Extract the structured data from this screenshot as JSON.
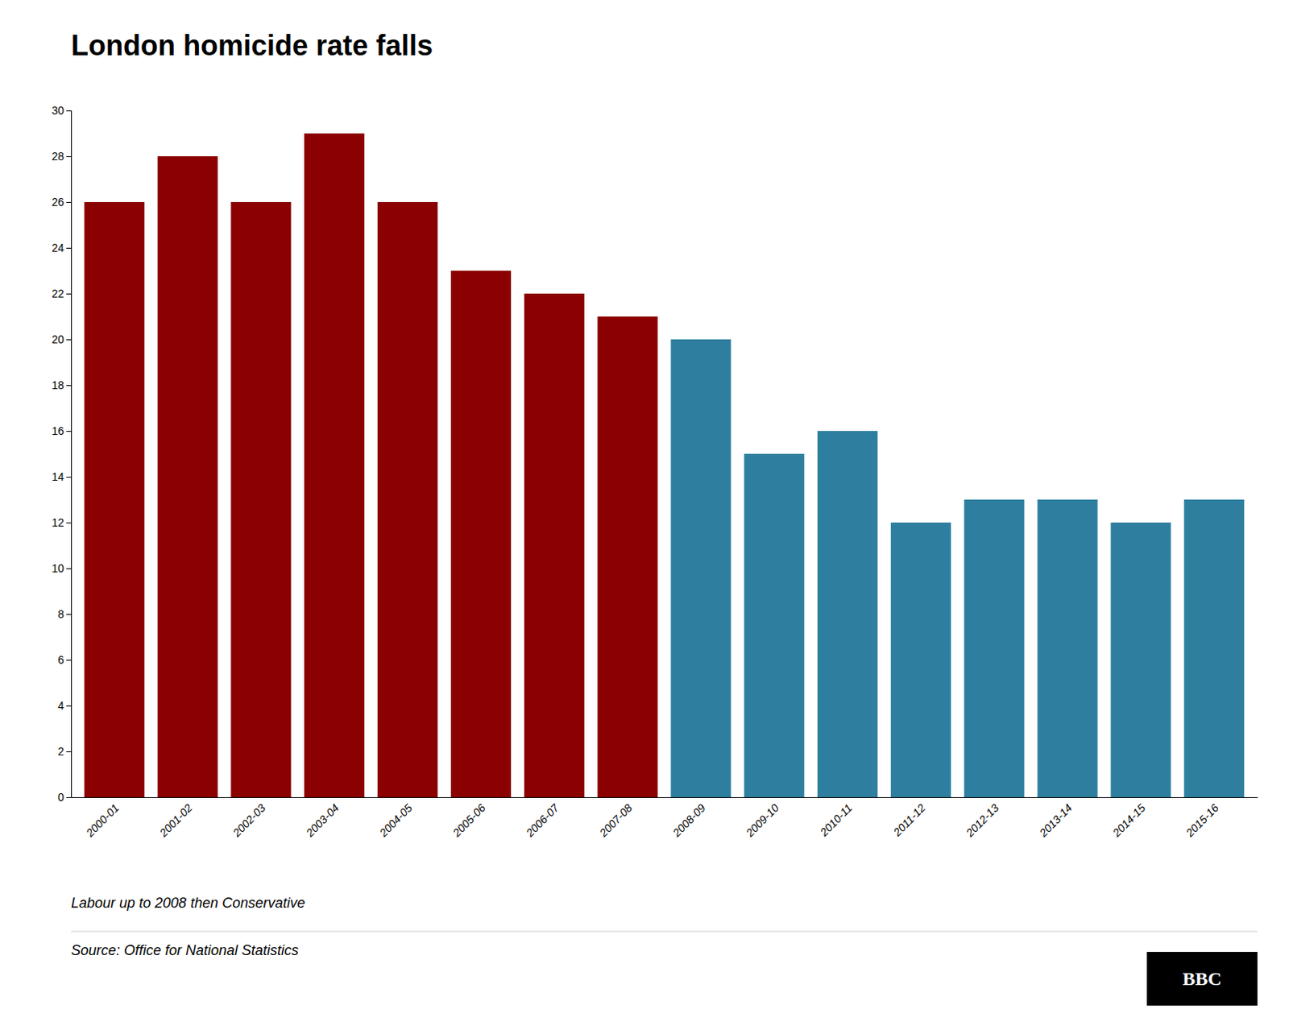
{
  "chart_data": {
    "type": "bar",
    "title": "London homicide rate falls",
    "subtitle": "Labour up to 2008 then Conservative",
    "source": "Source: Office for National Statistics",
    "annotations": [
      "BBC"
    ],
    "categories": [
      "2000-01",
      "2001-02",
      "2002-03",
      "2003-04",
      "2004-05",
      "2005-06",
      "2006-07",
      "2007-08",
      "2008-09",
      "2009-10",
      "2010-11",
      "2011-12",
      "2012-13",
      "2013-14",
      "2014-15",
      "2015-16"
    ],
    "values": [
      26,
      28,
      26,
      29,
      26,
      23,
      22,
      21,
      20,
      15,
      16,
      12,
      13,
      13,
      12,
      13
    ],
    "colors": [
      "#8B0000",
      "#8B0000",
      "#8B0000",
      "#8B0000",
      "#8B0000",
      "#8B0000",
      "#8B0000",
      "#8B0000",
      "#2E7F9F",
      "#2E7F9F",
      "#2E7F9F",
      "#2E7F9F",
      "#2E7F9F",
      "#2E7F9F",
      "#2E7F9F",
      "#2E7F9F"
    ],
    "ylim": [
      0,
      30
    ],
    "yticks": [
      0,
      2,
      4,
      6,
      8,
      10,
      12,
      14,
      16,
      18,
      20,
      22,
      24,
      26,
      28,
      30
    ],
    "grid": false
  }
}
